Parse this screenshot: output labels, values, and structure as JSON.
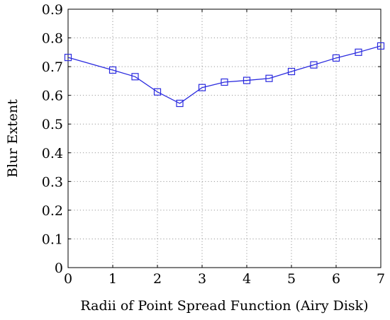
{
  "chart_data": {
    "type": "line",
    "xlabel": "Radii of Point Spread Function (Airy Disk)",
    "ylabel": "Blur Extent",
    "xlim": [
      0,
      7
    ],
    "ylim": [
      0,
      0.9
    ],
    "x_ticks": [
      0,
      1,
      2,
      3,
      4,
      5,
      6,
      7
    ],
    "x_tick_labels": [
      "0",
      "1",
      "2",
      "3",
      "4",
      "5",
      "6",
      "7"
    ],
    "y_ticks": [
      0,
      0.1,
      0.2,
      0.3,
      0.4,
      0.5,
      0.6,
      0.7,
      0.8,
      0.9
    ],
    "y_tick_labels": [
      "0",
      "0.1",
      "0.2",
      "0.3",
      "0.4",
      "0.5",
      "0.6",
      "0.7",
      "0.8",
      "0.9"
    ],
    "grid": true,
    "marker": "square",
    "series": [
      {
        "color": "#2b2bdf",
        "x": [
          0,
          1,
          1.5,
          2,
          2.5,
          3,
          3.5,
          4,
          4.5,
          5,
          5.5,
          6,
          6.5,
          7
        ],
        "y": [
          0.732,
          0.688,
          0.665,
          0.612,
          0.572,
          0.627,
          0.646,
          0.652,
          0.659,
          0.683,
          0.706,
          0.73,
          0.75,
          0.772
        ]
      }
    ]
  }
}
